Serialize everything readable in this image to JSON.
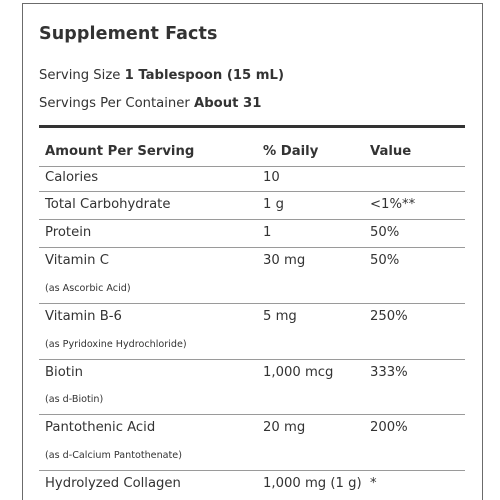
{
  "title": "Supplement Facts",
  "serving_size": {
    "label": "Serving Size",
    "value": "1 Tablespoon (15 mL)"
  },
  "servings_per_container": {
    "label": "Servings Per Container",
    "value": "About 31"
  },
  "table": {
    "headers": [
      "Amount Per Serving",
      "% Daily",
      "Value"
    ],
    "rows": [
      {
        "name": "Calories",
        "amount": "10",
        "dv": "",
        "sub": ""
      },
      {
        "name": "Total Carbohydrate",
        "amount": "1 g",
        "dv": "<1%**",
        "sub": ""
      },
      {
        "name": "Protein",
        "amount": "1",
        "dv": "50%",
        "sub": ""
      },
      {
        "name": "Vitamin C",
        "amount": "30 mg",
        "dv": "50%",
        "sub": "(as Ascorbic Acid)"
      },
      {
        "name": "Vitamin B-6",
        "amount": "5 mg",
        "dv": "250%",
        "sub": "(as Pyridoxine Hydrochloride)"
      },
      {
        "name": "Biotin",
        "amount": "1,000 mcg",
        "dv": "333%",
        "sub": "(as d-Biotin)"
      },
      {
        "name": "Pantothenic Acid",
        "amount": "20 mg",
        "dv": "200%",
        "sub": "(as d-Calcium Pantothenate)"
      },
      {
        "name": "Hydrolyzed Collagen",
        "amount": "1,000 mg (1 g)",
        "dv": "*",
        "sub": ""
      }
    ]
  }
}
